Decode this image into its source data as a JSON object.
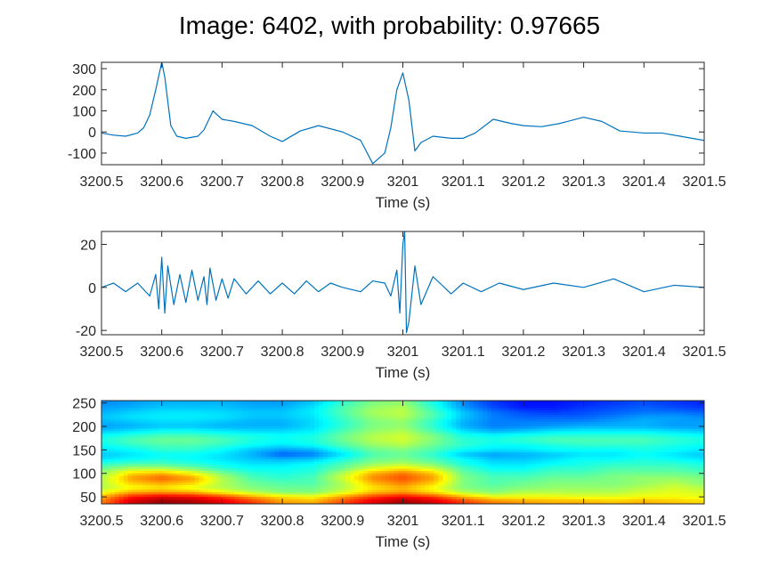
{
  "title": "Image: 6402, with probability: 0.97665",
  "chart_data": [
    {
      "type": "line",
      "xlabel": "Time (s)",
      "ylabel": "",
      "xlim": [
        3200.5,
        3201.5
      ],
      "ylim": [
        -155,
        330
      ],
      "xticks": [
        3200.5,
        3200.6,
        3200.7,
        3200.8,
        3200.9,
        3201,
        3201.1,
        3201.2,
        3201.3,
        3201.4,
        3201.5
      ],
      "xtick_labels": [
        "3200.5",
        "3200.6",
        "3200.7",
        "3200.8",
        "3200.9",
        "3201",
        "3201.1",
        "3201.2",
        "3201.3",
        "3201.4",
        "3201.5"
      ],
      "yticks": [
        -100,
        0,
        100,
        200,
        300
      ],
      "ytick_labels": [
        "-100",
        "0",
        "100",
        "200",
        "300"
      ],
      "grid": false,
      "color": "#0072BD",
      "series": [
        {
          "x": [
            3200.5,
            3200.52,
            3200.54,
            3200.56,
            3200.57,
            3200.58,
            3200.59,
            3200.6,
            3200.605,
            3200.615,
            3200.625,
            3200.64,
            3200.66,
            3200.67,
            3200.685,
            3200.7,
            3200.72,
            3200.75,
            3200.78,
            3200.8,
            3200.83,
            3200.86,
            3200.9,
            3200.93,
            3200.95,
            3200.97,
            3200.98,
            3200.99,
            3201,
            3201.01,
            3201.02,
            3201.03,
            3201.05,
            3201.08,
            3201.1,
            3201.12,
            3201.15,
            3201.18,
            3201.2,
            3201.23,
            3201.26,
            3201.3,
            3201.33,
            3201.36,
            3201.4,
            3201.43,
            3201.46,
            3201.5
          ],
          "y": [
            -5,
            -15,
            -20,
            -5,
            20,
            80,
            200,
            330,
            260,
            30,
            -20,
            -30,
            -20,
            10,
            100,
            60,
            50,
            30,
            -20,
            -45,
            5,
            30,
            0,
            -40,
            -150,
            -100,
            20,
            200,
            280,
            150,
            -90,
            -50,
            -20,
            -30,
            -30,
            -5,
            60,
            40,
            30,
            25,
            40,
            70,
            50,
            5,
            -5,
            -5,
            -20,
            -40
          ]
        }
      ]
    },
    {
      "type": "line",
      "xlabel": "Time (s)",
      "ylabel": "",
      "xlim": [
        3200.5,
        3201.5
      ],
      "ylim": [
        -22,
        26
      ],
      "xticks": [
        3200.5,
        3200.6,
        3200.7,
        3200.8,
        3200.9,
        3201,
        3201.1,
        3201.2,
        3201.3,
        3201.4,
        3201.5
      ],
      "xtick_labels": [
        "3200.5",
        "3200.6",
        "3200.7",
        "3200.8",
        "3200.9",
        "3201",
        "3201.1",
        "3201.2",
        "3201.3",
        "3201.4",
        "3201.5"
      ],
      "yticks": [
        -20,
        0,
        20
      ],
      "ytick_labels": [
        "-20",
        "0",
        "20"
      ],
      "grid": false,
      "color": "#0072BD",
      "series": [
        {
          "x": [
            3200.5,
            3200.52,
            3200.54,
            3200.56,
            3200.58,
            3200.59,
            3200.595,
            3200.6,
            3200.605,
            3200.61,
            3200.62,
            3200.63,
            3200.64,
            3200.65,
            3200.66,
            3200.67,
            3200.675,
            3200.68,
            3200.69,
            3200.7,
            3200.71,
            3200.72,
            3200.74,
            3200.76,
            3200.78,
            3200.8,
            3200.82,
            3200.84,
            3200.86,
            3200.88,
            3200.9,
            3200.93,
            3200.95,
            3200.97,
            3200.98,
            3200.99,
            3200.995,
            3201,
            3201.003,
            3201.006,
            3201.01,
            3201.02,
            3201.03,
            3201.05,
            3201.08,
            3201.1,
            3201.13,
            3201.16,
            3201.2,
            3201.25,
            3201.3,
            3201.35,
            3201.4,
            3201.45,
            3201.5
          ],
          "y": [
            0,
            2,
            -2,
            2,
            -4,
            6,
            -10,
            14,
            -12,
            10,
            -8,
            6,
            -7,
            8,
            -6,
            5,
            -8,
            9,
            -6,
            4,
            -5,
            4,
            -3,
            3,
            -3,
            2,
            -3,
            3,
            -2,
            2,
            0,
            -2,
            3,
            2,
            -4,
            8,
            -12,
            20,
            26,
            -21,
            -16,
            10,
            -8,
            5,
            -3,
            2,
            -2,
            2,
            -1,
            2,
            0,
            4,
            -2,
            1,
            0
          ]
        }
      ]
    },
    {
      "type": "heatmap",
      "xlabel": "Time (s)",
      "ylabel": "",
      "xlim": [
        3200.5,
        3201.5
      ],
      "ylim": [
        35,
        255
      ],
      "xticks": [
        3200.5,
        3200.6,
        3200.7,
        3200.8,
        3200.9,
        3201,
        3201.1,
        3201.2,
        3201.3,
        3201.4,
        3201.5
      ],
      "xtick_labels": [
        "3200.5",
        "3200.6",
        "3200.7",
        "3200.8",
        "3200.9",
        "3201",
        "3201.1",
        "3201.2",
        "3201.3",
        "3201.4",
        "3201.5"
      ],
      "yticks": [
        50,
        100,
        150,
        200,
        250
      ],
      "ytick_labels": [
        "50",
        "100",
        "150",
        "200",
        "250"
      ],
      "colormap": "jet",
      "x": [
        3200.5,
        3200.55,
        3200.6,
        3200.65,
        3200.7,
        3200.75,
        3200.8,
        3200.85,
        3200.9,
        3200.95,
        3201,
        3201.05,
        3201.1,
        3201.15,
        3201.2,
        3201.25,
        3201.3,
        3201.35,
        3201.4,
        3201.45,
        3201.5
      ],
      "y": [
        40,
        50,
        60,
        70,
        80,
        90,
        100,
        110,
        120,
        130,
        140,
        150,
        160,
        170,
        180,
        190,
        200,
        210,
        220,
        230,
        240,
        250
      ],
      "z": [
        [
          0.75,
          0.92,
          0.98,
          0.96,
          0.9,
          0.82,
          0.72,
          0.7,
          0.8,
          0.9,
          0.97,
          0.92,
          0.82,
          0.75,
          0.72,
          0.7,
          0.7,
          0.68,
          0.7,
          0.68,
          0.66
        ],
        [
          0.7,
          0.85,
          0.9,
          0.88,
          0.82,
          0.72,
          0.65,
          0.62,
          0.72,
          0.82,
          0.88,
          0.82,
          0.7,
          0.62,
          0.62,
          0.62,
          0.6,
          0.6,
          0.62,
          0.62,
          0.6
        ],
        [
          0.6,
          0.7,
          0.72,
          0.7,
          0.62,
          0.55,
          0.5,
          0.5,
          0.58,
          0.68,
          0.72,
          0.65,
          0.55,
          0.5,
          0.55,
          0.55,
          0.55,
          0.55,
          0.58,
          0.6,
          0.58
        ],
        [
          0.55,
          0.62,
          0.65,
          0.6,
          0.55,
          0.5,
          0.48,
          0.48,
          0.55,
          0.65,
          0.7,
          0.62,
          0.5,
          0.48,
          0.5,
          0.52,
          0.52,
          0.52,
          0.55,
          0.58,
          0.55
        ],
        [
          0.55,
          0.68,
          0.72,
          0.68,
          0.55,
          0.48,
          0.45,
          0.45,
          0.55,
          0.7,
          0.76,
          0.68,
          0.5,
          0.45,
          0.48,
          0.5,
          0.5,
          0.5,
          0.52,
          0.55,
          0.5
        ],
        [
          0.55,
          0.72,
          0.78,
          0.72,
          0.55,
          0.45,
          0.42,
          0.45,
          0.58,
          0.74,
          0.8,
          0.72,
          0.5,
          0.45,
          0.45,
          0.48,
          0.48,
          0.5,
          0.52,
          0.52,
          0.5
        ],
        [
          0.52,
          0.66,
          0.7,
          0.62,
          0.5,
          0.42,
          0.4,
          0.42,
          0.55,
          0.7,
          0.76,
          0.68,
          0.48,
          0.42,
          0.42,
          0.45,
          0.45,
          0.48,
          0.48,
          0.48,
          0.46
        ],
        [
          0.48,
          0.55,
          0.55,
          0.5,
          0.42,
          0.38,
          0.38,
          0.4,
          0.48,
          0.6,
          0.65,
          0.58,
          0.45,
          0.38,
          0.38,
          0.42,
          0.42,
          0.45,
          0.45,
          0.45,
          0.42
        ],
        [
          0.42,
          0.45,
          0.45,
          0.42,
          0.38,
          0.35,
          0.35,
          0.38,
          0.45,
          0.52,
          0.55,
          0.5,
          0.4,
          0.35,
          0.35,
          0.38,
          0.4,
          0.42,
          0.42,
          0.42,
          0.4
        ],
        [
          0.35,
          0.38,
          0.4,
          0.38,
          0.35,
          0.32,
          0.3,
          0.32,
          0.4,
          0.48,
          0.5,
          0.45,
          0.38,
          0.32,
          0.32,
          0.35,
          0.38,
          0.38,
          0.4,
          0.38,
          0.35
        ],
        [
          0.32,
          0.35,
          0.38,
          0.38,
          0.35,
          0.3,
          0.22,
          0.25,
          0.35,
          0.45,
          0.48,
          0.42,
          0.32,
          0.28,
          0.3,
          0.32,
          0.35,
          0.35,
          0.38,
          0.35,
          0.32
        ],
        [
          0.35,
          0.38,
          0.42,
          0.42,
          0.38,
          0.32,
          0.28,
          0.3,
          0.4,
          0.48,
          0.5,
          0.45,
          0.38,
          0.35,
          0.35,
          0.38,
          0.38,
          0.38,
          0.4,
          0.38,
          0.35
        ],
        [
          0.38,
          0.42,
          0.45,
          0.45,
          0.42,
          0.38,
          0.35,
          0.38,
          0.45,
          0.52,
          0.55,
          0.48,
          0.42,
          0.38,
          0.38,
          0.4,
          0.42,
          0.42,
          0.42,
          0.4,
          0.38
        ],
        [
          0.4,
          0.45,
          0.48,
          0.48,
          0.45,
          0.4,
          0.38,
          0.4,
          0.48,
          0.55,
          0.58,
          0.5,
          0.42,
          0.4,
          0.42,
          0.45,
          0.45,
          0.45,
          0.45,
          0.42,
          0.4
        ],
        [
          0.38,
          0.42,
          0.45,
          0.45,
          0.42,
          0.4,
          0.38,
          0.4,
          0.48,
          0.55,
          0.58,
          0.5,
          0.4,
          0.38,
          0.4,
          0.42,
          0.42,
          0.42,
          0.42,
          0.4,
          0.38
        ],
        [
          0.32,
          0.35,
          0.38,
          0.38,
          0.36,
          0.34,
          0.34,
          0.36,
          0.45,
          0.52,
          0.55,
          0.45,
          0.35,
          0.3,
          0.32,
          0.35,
          0.36,
          0.36,
          0.36,
          0.34,
          0.32
        ],
        [
          0.28,
          0.3,
          0.32,
          0.32,
          0.3,
          0.3,
          0.3,
          0.34,
          0.42,
          0.5,
          0.52,
          0.42,
          0.3,
          0.25,
          0.26,
          0.28,
          0.3,
          0.3,
          0.3,
          0.28,
          0.28
        ],
        [
          0.3,
          0.32,
          0.34,
          0.34,
          0.32,
          0.3,
          0.3,
          0.34,
          0.42,
          0.5,
          0.52,
          0.42,
          0.3,
          0.25,
          0.25,
          0.25,
          0.26,
          0.28,
          0.3,
          0.28,
          0.28
        ],
        [
          0.32,
          0.35,
          0.36,
          0.36,
          0.35,
          0.32,
          0.32,
          0.35,
          0.44,
          0.52,
          0.55,
          0.45,
          0.32,
          0.25,
          0.22,
          0.22,
          0.22,
          0.25,
          0.28,
          0.28,
          0.26
        ],
        [
          0.3,
          0.33,
          0.35,
          0.35,
          0.34,
          0.32,
          0.32,
          0.36,
          0.45,
          0.54,
          0.56,
          0.45,
          0.32,
          0.24,
          0.2,
          0.18,
          0.2,
          0.22,
          0.24,
          0.24,
          0.22
        ],
        [
          0.28,
          0.3,
          0.32,
          0.32,
          0.32,
          0.3,
          0.3,
          0.35,
          0.45,
          0.52,
          0.55,
          0.42,
          0.28,
          0.2,
          0.15,
          0.15,
          0.18,
          0.2,
          0.22,
          0.2,
          0.18
        ],
        [
          0.26,
          0.28,
          0.3,
          0.3,
          0.3,
          0.28,
          0.28,
          0.32,
          0.42,
          0.5,
          0.52,
          0.4,
          0.26,
          0.18,
          0.14,
          0.14,
          0.16,
          0.18,
          0.2,
          0.18,
          0.16
        ]
      ]
    }
  ]
}
